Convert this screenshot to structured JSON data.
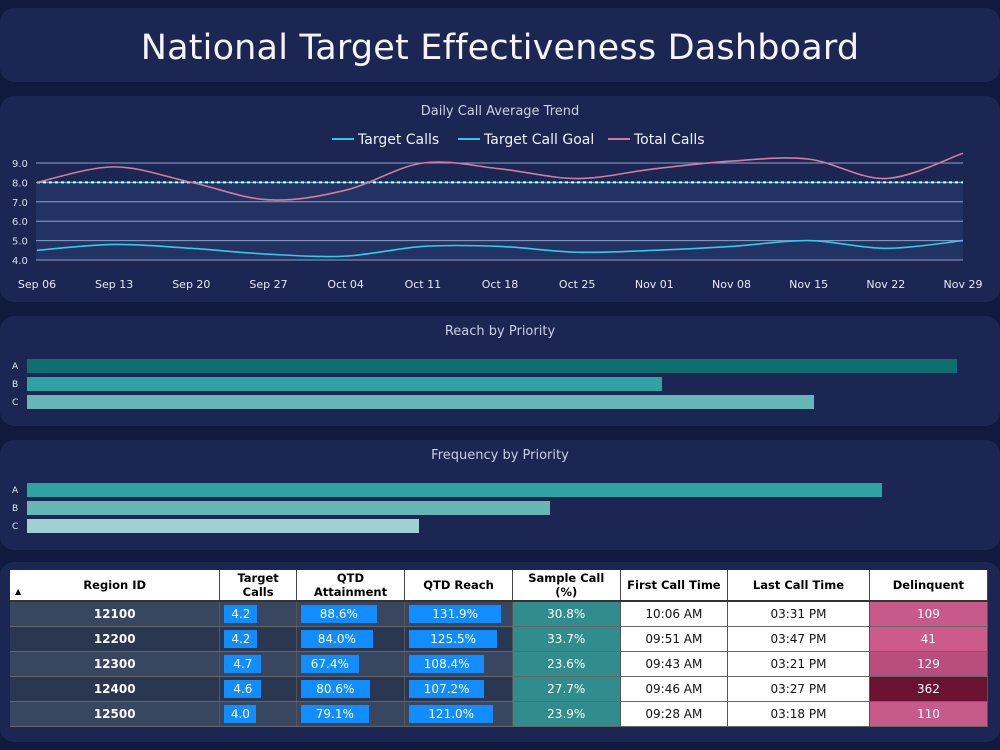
{
  "title": "National Target Effectiveness Dashboard",
  "trend": {
    "title": "Daily Call Average Trend",
    "legend": [
      {
        "name": "Target Calls",
        "color": "#34c9eb"
      },
      {
        "name": "Target Call Goal",
        "color": "#34c9eb"
      },
      {
        "name": "Total Calls",
        "color": "#d17aa4"
      }
    ]
  },
  "chart_data": [
    {
      "type": "line",
      "title": "Daily Call Average Trend",
      "x": [
        "Sep 06",
        "Sep 13",
        "Sep 20",
        "Sep 27",
        "Oct 04",
        "Oct 11",
        "Oct 18",
        "Oct 25",
        "Nov 01",
        "Nov 08",
        "Nov 15",
        "Nov 22",
        "Nov 29"
      ],
      "ylim": [
        4.0,
        9.0
      ],
      "yticks": [
        "9.0",
        "8.0",
        "7.0",
        "6.0",
        "5.0",
        "4.0"
      ],
      "series": [
        {
          "name": "Target Calls",
          "color": "#34c9eb",
          "values": [
            4.5,
            4.8,
            4.6,
            4.3,
            4.2,
            4.7,
            4.7,
            4.4,
            4.5,
            4.7,
            5.0,
            4.6,
            5.0
          ]
        },
        {
          "name": "Target Call Goal",
          "color": "#34c9eb",
          "dashed": true,
          "values": [
            8.0,
            8.0,
            8.0,
            8.0,
            8.0,
            8.0,
            8.0,
            8.0,
            8.0,
            8.0,
            8.0,
            8.0,
            8.0
          ]
        },
        {
          "name": "Total Calls",
          "color": "#d17aa4",
          "values": [
            8.0,
            8.8,
            8.0,
            7.1,
            7.6,
            9.0,
            8.7,
            8.2,
            8.7,
            9.1,
            9.2,
            8.2,
            9.5
          ]
        }
      ]
    },
    {
      "type": "bar",
      "orientation": "horizontal",
      "title": "Reach by Priority",
      "categories": [
        "A",
        "B",
        "C"
      ],
      "values": [
        0.93,
        0.635,
        0.787
      ],
      "colors": [
        "#0f6e6e",
        "#2fa3a3",
        "#67b6b6"
      ]
    },
    {
      "type": "bar",
      "orientation": "horizontal",
      "title": "Frequency by Priority",
      "categories": [
        "A",
        "B",
        "C"
      ],
      "values": [
        0.855,
        0.523,
        0.392
      ],
      "colors": [
        "#2fa3a3",
        "#67b6b6",
        "#9fd0d2"
      ]
    }
  ],
  "table": {
    "headers": [
      "Region ID",
      "Target Calls",
      "QTD Attainment",
      "QTD Reach",
      "Sample Call (%)",
      "First Call Time",
      "Last Call Time",
      "Delinquent"
    ],
    "sort_icon": "▲",
    "rows": [
      {
        "region": "12100",
        "target": "4.2",
        "target_frac": 0.55,
        "qtd": "88.6%",
        "qtd_frac": 0.86,
        "reach": "131.9%",
        "reach_frac": 0.96,
        "sample": "30.8%",
        "first": "10:06 AM",
        "last": "03:31 PM",
        "delinquent": "109",
        "del_color": "#c85a8a"
      },
      {
        "region": "12200",
        "target": "4.2",
        "target_frac": 0.55,
        "qtd": "84.0%",
        "qtd_frac": 0.82,
        "reach": "125.5%",
        "reach_frac": 0.92,
        "sample": "33.7%",
        "first": "09:51 AM",
        "last": "03:47 PM",
        "delinquent": "41",
        "del_color": "#cd5b8a"
      },
      {
        "region": "12300",
        "target": "4.7",
        "target_frac": 0.62,
        "qtd": "67.4%",
        "qtd_frac": 0.66,
        "reach": "108.4%",
        "reach_frac": 0.78,
        "sample": "23.6%",
        "first": "09:43 AM",
        "last": "03:21 PM",
        "delinquent": "129",
        "del_color": "#b94d7c"
      },
      {
        "region": "12400",
        "target": "4.6",
        "target_frac": 0.61,
        "qtd": "80.6%",
        "qtd_frac": 0.78,
        "reach": "107.2%",
        "reach_frac": 0.78,
        "sample": "27.7%",
        "first": "09:46 AM",
        "last": "03:27 PM",
        "delinquent": "362",
        "del_color": "#6a1230"
      },
      {
        "region": "12500",
        "target": "4.0",
        "target_frac": 0.53,
        "qtd": "79.1%",
        "qtd_frac": 0.77,
        "reach": "121.0%",
        "reach_frac": 0.88,
        "sample": "23.9%",
        "first": "09:28 AM",
        "last": "03:18 PM",
        "delinquent": "110",
        "del_color": "#c85a8a"
      }
    ]
  }
}
